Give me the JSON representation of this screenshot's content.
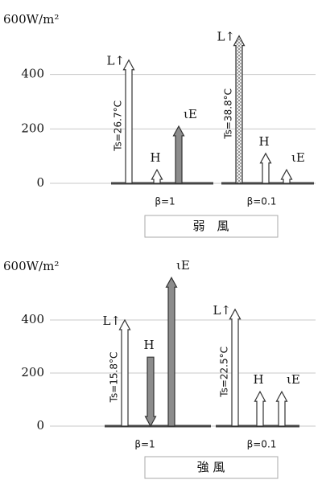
{
  "chart_data": [
    {
      "type": "arrow",
      "caption": "弱　風",
      "ylim": [
        0,
        600
      ],
      "yticks": [
        0,
        200,
        400,
        {
          "value": 600,
          "label": "600W/m²"
        }
      ],
      "grid": true,
      "categories": [
        "β=1",
        "β=0.1"
      ],
      "surface_temps": [
        "Ts=26.7°C",
        "Ts=38.8°C"
      ],
      "series": [
        {
          "name": "L↑",
          "colors": [
            "#ffffff",
            "dotted"
          ],
          "direction": [
            "up",
            "up"
          ],
          "values": [
            453,
            542
          ]
        },
        {
          "name": "H",
          "colors": [
            "#ffffff",
            "#ffffff"
          ],
          "direction": [
            "up",
            "up"
          ],
          "values": [
            50,
            110
          ]
        },
        {
          "name": "ιE",
          "colors": [
            "#8c8c8c",
            "#ffffff"
          ],
          "direction": [
            "up",
            "up"
          ],
          "values": [
            210,
            50
          ]
        }
      ]
    },
    {
      "type": "arrow",
      "caption": "強 風",
      "ylim": [
        0,
        600
      ],
      "yticks": [
        0,
        200,
        400,
        {
          "value": 600,
          "label": "600W/m²"
        }
      ],
      "grid": true,
      "categories": [
        "β=1",
        "β=0.1"
      ],
      "surface_temps": [
        "Ts=15.8°C",
        "Ts=22.5°C"
      ],
      "series": [
        {
          "name": "L↑",
          "colors": [
            "#ffffff",
            "#ffffff"
          ],
          "direction": [
            "up",
            "up"
          ],
          "values": [
            400,
            440
          ]
        },
        {
          "name": "H",
          "colors": [
            "#8c8c8c",
            "#ffffff"
          ],
          "direction": [
            "down",
            "up"
          ],
          "values": [
            260,
            130
          ]
        },
        {
          "name": "ιE",
          "colors": [
            "#8c8c8c",
            "#ffffff"
          ],
          "direction": [
            "up",
            "up"
          ],
          "values": [
            560,
            130
          ]
        }
      ]
    }
  ]
}
